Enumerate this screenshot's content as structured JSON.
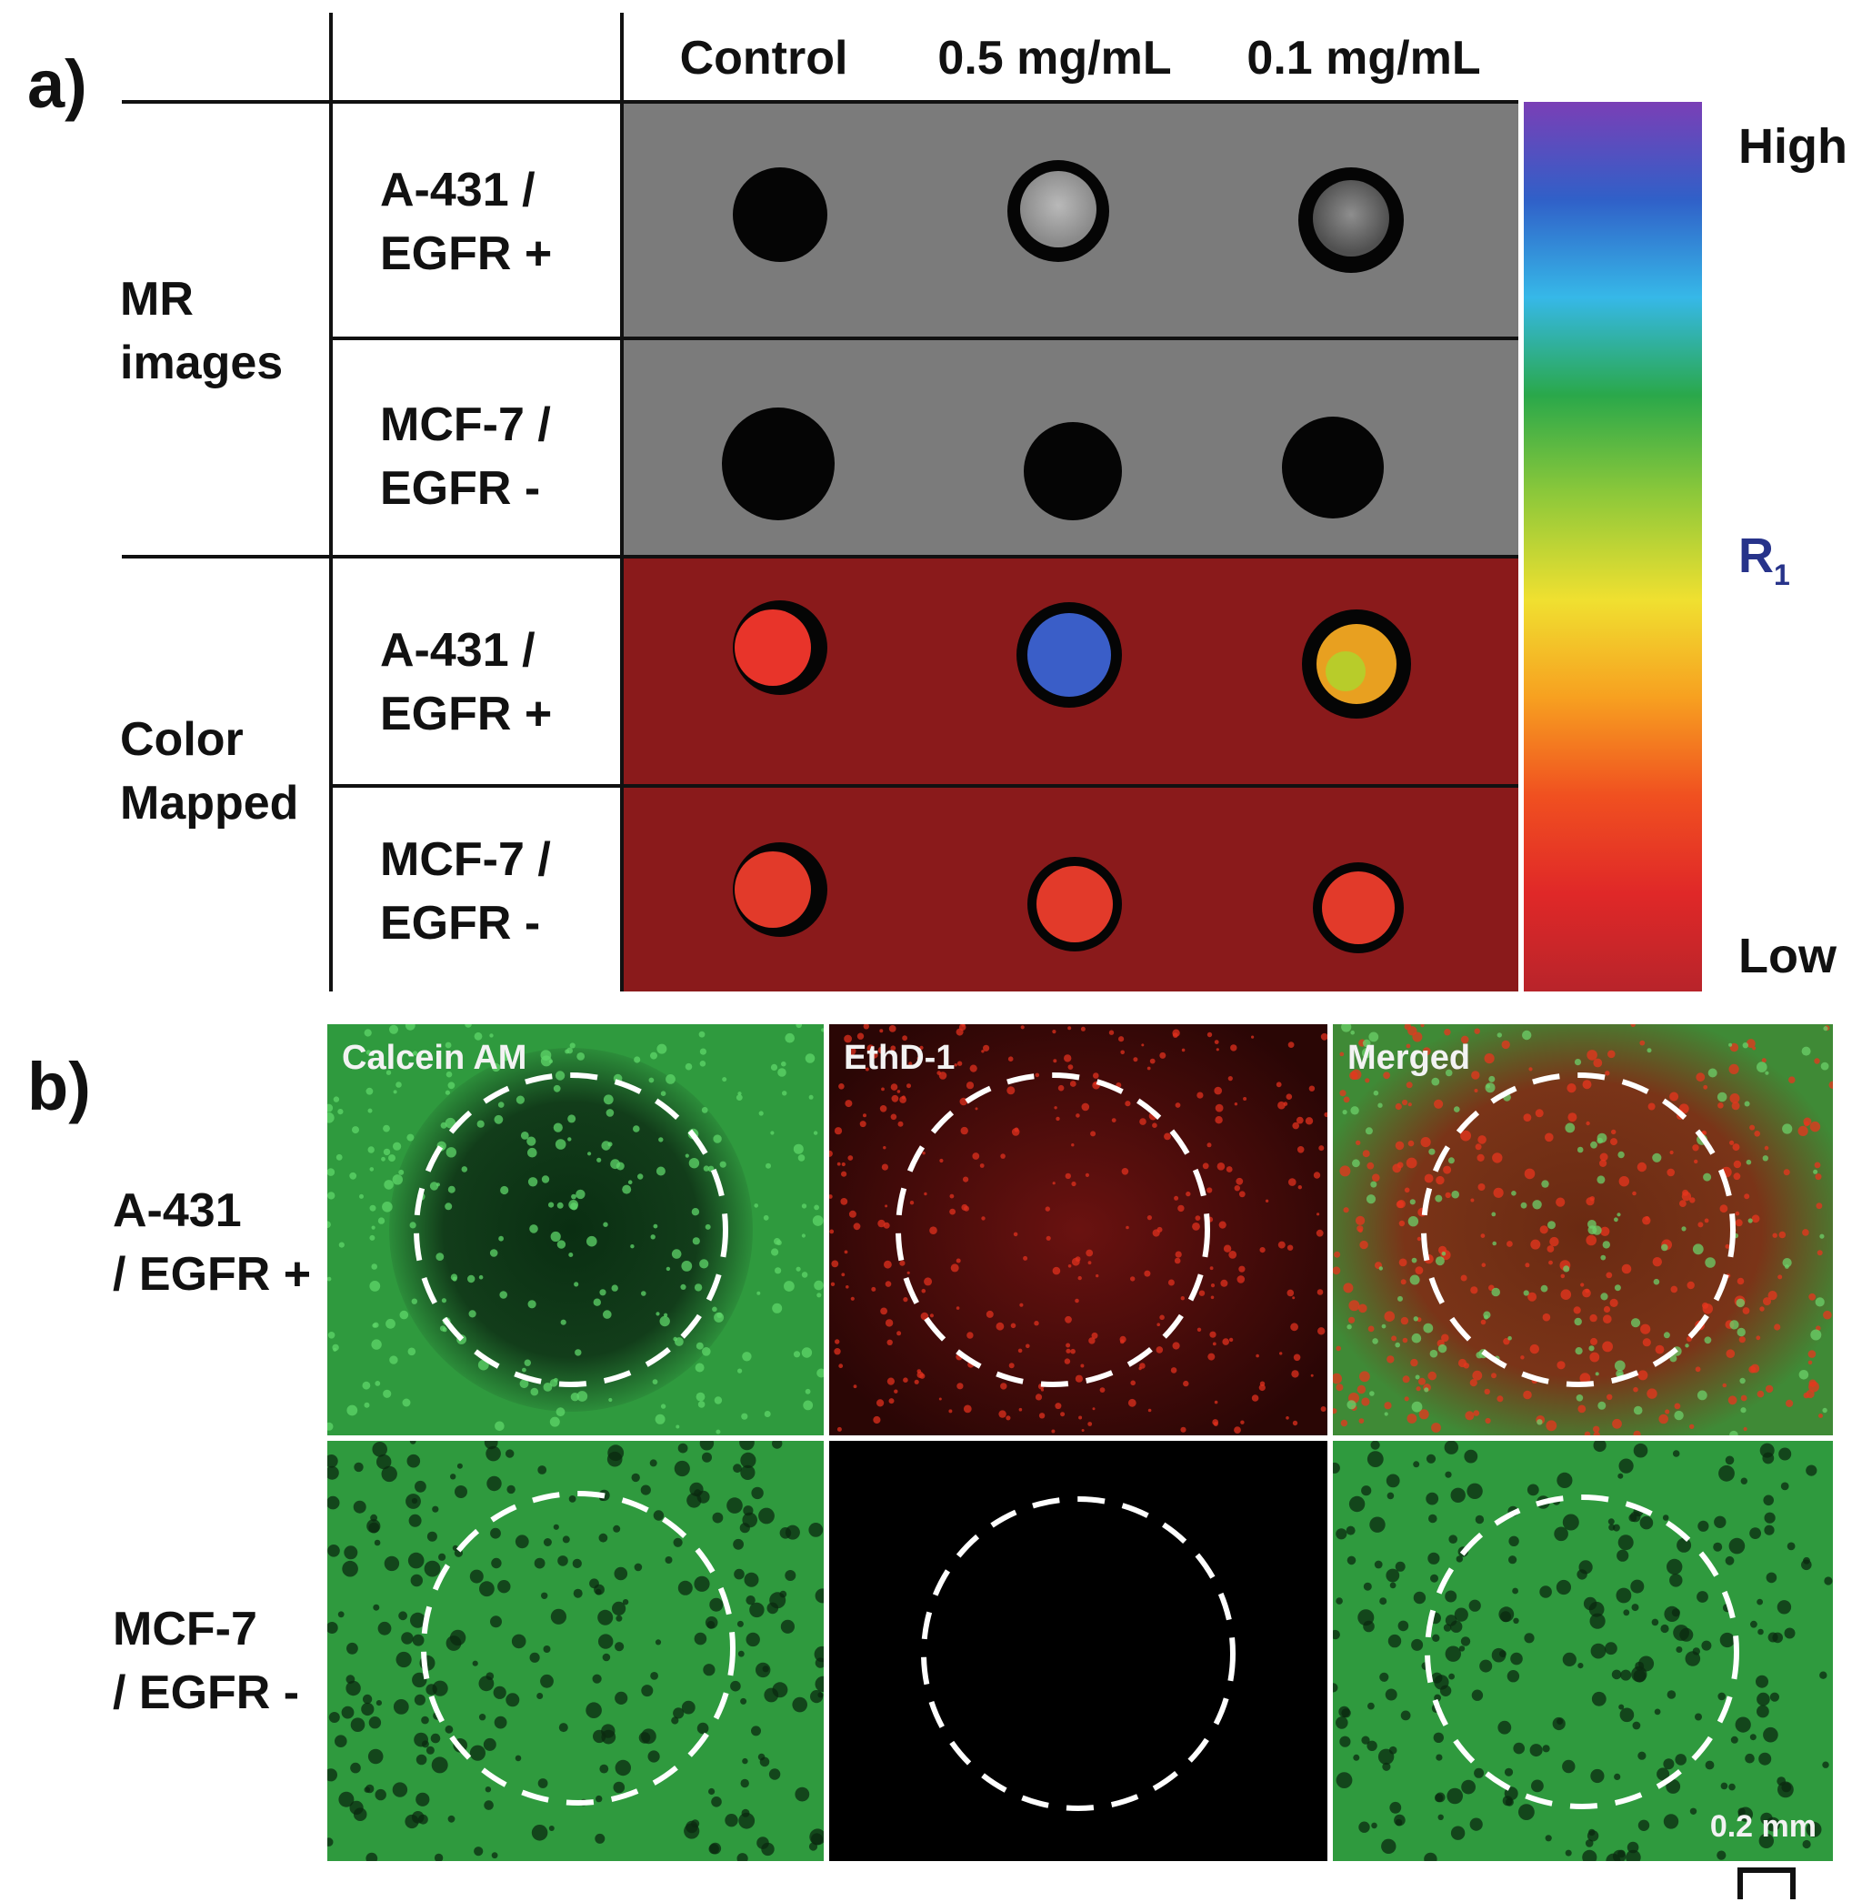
{
  "panel_a": {
    "letter": "a)",
    "columns": [
      "Control",
      "0.5 mg/mL",
      "0.1 mg/mL"
    ],
    "groups": [
      {
        "label_line1": "MR",
        "label_line2": "images"
      },
      {
        "label_line1": "Color",
        "label_line2": "Mapped"
      }
    ],
    "rows": [
      {
        "line1": "A-431 /",
        "line2": "EGFR +"
      },
      {
        "line1": "MCF-7 /",
        "line2": "EGFR -"
      },
      {
        "line1": "A-431 /",
        "line2": "EGFR +"
      },
      {
        "line1": "MCF-7 /",
        "line2": "EGFR -"
      }
    ],
    "colorbar": {
      "high": "High",
      "low": "Low",
      "param": "R",
      "param_sub": "1",
      "colors_top_to_bottom": [
        "#7a3fb6",
        "#3060c8",
        "#36b8e8",
        "#2aa84a",
        "#8cc83a",
        "#f0e030",
        "#f7a020",
        "#f05020",
        "#e02828",
        "#b8242a"
      ]
    },
    "mr_background": "#7b7b7b",
    "color_map_background": "#8a1a1b"
  },
  "panel_b": {
    "letter": "b)",
    "channels": [
      "Calcein AM",
      "EthD-1",
      "Merged"
    ],
    "rows": [
      {
        "line1": "A-431",
        "line2": "/ EGFR +"
      },
      {
        "line1": "MCF-7",
        "line2": "/ EGFR -"
      }
    ],
    "scale_bar": "0.2 mm",
    "live_color": "#2e9e3e",
    "dead_color": "#c0201c"
  }
}
